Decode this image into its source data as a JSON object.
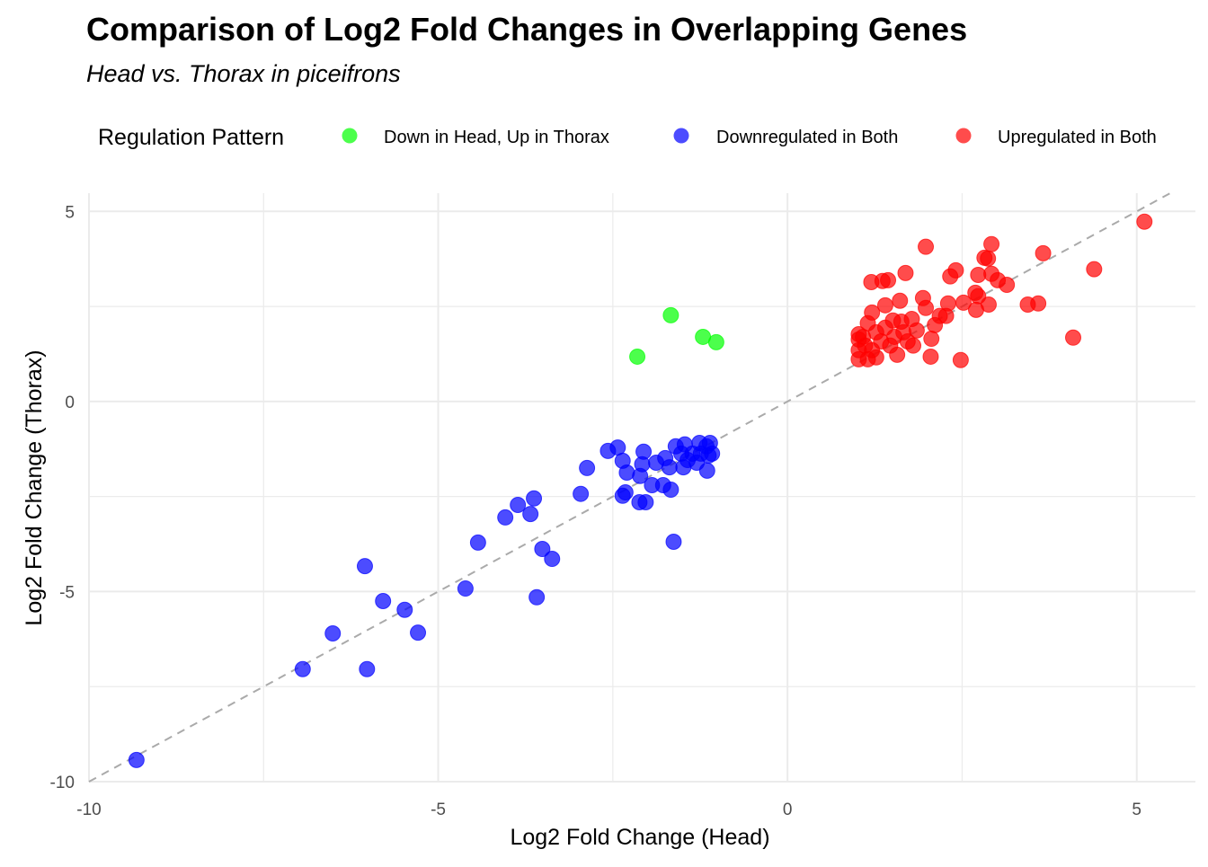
{
  "chart_data": {
    "type": "scatter",
    "title": "Comparison of Log2 Fold Changes in Overlapping Genes",
    "subtitle": "Head vs. Thorax in piceifrons",
    "xlabel": "Log2 Fold Change (Head)",
    "ylabel": "Log2 Fold Change (Thorax)",
    "xlim": [
      -10,
      5.84
    ],
    "ylim": [
      -10,
      5.48
    ],
    "xticks": [
      -10,
      -5,
      0,
      5
    ],
    "yticks": [
      -10,
      -5,
      0,
      5
    ],
    "xtick_labels": [
      "-10",
      "-5",
      "0",
      "5"
    ],
    "ytick_labels": [
      "-10",
      "-5",
      "0",
      "5"
    ],
    "grid": true,
    "reference_line": "y = x (dashed grey)",
    "legend": {
      "title": "Regulation Pattern",
      "placement": "top"
    },
    "series": [
      {
        "name": "Down in Head, Up in Thorax",
        "color": "#00ff00",
        "points": [
          [
            -2.15,
            1.18
          ],
          [
            -1.67,
            2.27
          ],
          [
            -1.21,
            1.7
          ],
          [
            -1.02,
            1.56
          ]
        ]
      },
      {
        "name": "Downregulated in Both",
        "color": "#0000ff",
        "points": [
          [
            -9.32,
            -9.43
          ],
          [
            -6.94,
            -7.04
          ],
          [
            -6.02,
            -7.04
          ],
          [
            -6.51,
            -6.1
          ],
          [
            -5.29,
            -6.08
          ],
          [
            -5.79,
            -5.25
          ],
          [
            -5.48,
            -5.48
          ],
          [
            -6.05,
            -4.33
          ],
          [
            -4.61,
            -4.92
          ],
          [
            -3.59,
            -5.15
          ],
          [
            -4.43,
            -3.71
          ],
          [
            -3.51,
            -3.88
          ],
          [
            -3.37,
            -4.14
          ],
          [
            -4.04,
            -3.05
          ],
          [
            -3.86,
            -2.72
          ],
          [
            -3.68,
            -2.96
          ],
          [
            -3.63,
            -2.55
          ],
          [
            -2.96,
            -2.43
          ],
          [
            -2.87,
            -1.75
          ],
          [
            -2.57,
            -1.3
          ],
          [
            -2.43,
            -1.21
          ],
          [
            -2.36,
            -1.56
          ],
          [
            -2.3,
            -1.87
          ],
          [
            -2.36,
            -2.48
          ],
          [
            -2.32,
            -2.39
          ],
          [
            -2.12,
            -2.65
          ],
          [
            -2.03,
            -2.65
          ],
          [
            -2.11,
            -1.96
          ],
          [
            -2.08,
            -1.65
          ],
          [
            -2.06,
            -1.32
          ],
          [
            -1.94,
            -2.2
          ],
          [
            -1.88,
            -1.61
          ],
          [
            -1.78,
            -2.2
          ],
          [
            -1.67,
            -2.32
          ],
          [
            -1.63,
            -3.69
          ],
          [
            -1.75,
            -1.49
          ],
          [
            -1.6,
            -1.18
          ],
          [
            -1.52,
            -1.37
          ],
          [
            -1.49,
            -1.73
          ],
          [
            -1.69,
            -1.73
          ],
          [
            -1.36,
            -1.37
          ],
          [
            -1.26,
            -1.09
          ],
          [
            -1.16,
            -1.18
          ],
          [
            -1.11,
            -1.09
          ],
          [
            -1.15,
            -1.82
          ],
          [
            -1.08,
            -1.37
          ],
          [
            -1.3,
            -1.61
          ],
          [
            -1.47,
            -1.13
          ],
          [
            -1.24,
            -1.37
          ],
          [
            -1.43,
            -1.54
          ],
          [
            -1.13,
            -1.42
          ]
        ]
      },
      {
        "name": "Upregulated in Both",
        "color": "#ff0000",
        "points": [
          [
            5.11,
            4.73
          ],
          [
            4.39,
            3.48
          ],
          [
            3.66,
            3.9
          ],
          [
            4.09,
            1.68
          ],
          [
            3.44,
            2.55
          ],
          [
            3.59,
            2.58
          ],
          [
            2.92,
            4.14
          ],
          [
            2.82,
            3.78
          ],
          [
            2.87,
            3.76
          ],
          [
            2.73,
            3.33
          ],
          [
            2.92,
            3.36
          ],
          [
            3.01,
            3.19
          ],
          [
            3.14,
            3.07
          ],
          [
            2.88,
            2.55
          ],
          [
            2.73,
            2.77
          ],
          [
            2.69,
            2.86
          ],
          [
            2.7,
            2.41
          ],
          [
            2.52,
            2.6
          ],
          [
            2.41,
            3.45
          ],
          [
            2.33,
            3.29
          ],
          [
            1.98,
            4.07
          ],
          [
            1.69,
            3.38
          ],
          [
            2.48,
            1.09
          ],
          [
            2.05,
            1.18
          ],
          [
            2.06,
            1.65
          ],
          [
            2.27,
            2.25
          ],
          [
            2.3,
            2.58
          ],
          [
            1.94,
            2.72
          ],
          [
            1.98,
            2.46
          ],
          [
            1.2,
            3.14
          ],
          [
            1.36,
            3.17
          ],
          [
            1.44,
            3.19
          ],
          [
            1.61,
            2.65
          ],
          [
            1.4,
            2.53
          ],
          [
            1.21,
            2.34
          ],
          [
            1.57,
            1.23
          ],
          [
            1.8,
            1.47
          ],
          [
            1.78,
            2.17
          ],
          [
            1.63,
            2.1
          ],
          [
            1.08,
            1.7
          ],
          [
            1.02,
            1.35
          ],
          [
            1.02,
            1.11
          ],
          [
            1.15,
            1.11
          ],
          [
            1.27,
            1.16
          ],
          [
            1.15,
            2.06
          ],
          [
            1.27,
            1.82
          ],
          [
            1.4,
            1.94
          ],
          [
            1.47,
            1.47
          ],
          [
            1.02,
            1.63
          ],
          [
            1.11,
            1.47
          ],
          [
            1.21,
            1.35
          ],
          [
            1.34,
            1.58
          ],
          [
            1.53,
            1.7
          ],
          [
            1.66,
            1.82
          ],
          [
            1.85,
            1.87
          ],
          [
            1.72,
            1.58
          ],
          [
            1.51,
            2.13
          ],
          [
            1.02,
            1.77
          ],
          [
            2.18,
            2.25
          ],
          [
            2.11,
            2.01
          ]
        ]
      }
    ]
  }
}
